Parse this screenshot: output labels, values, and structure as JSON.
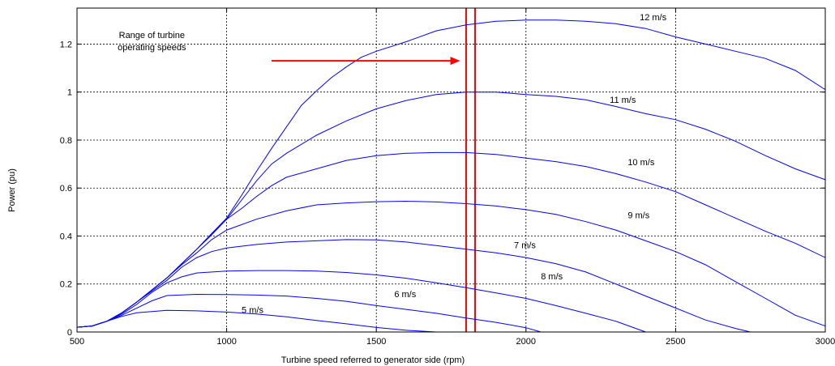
{
  "chart_data": {
    "type": "line",
    "title": "",
    "xlabel": "Turbine speed referred to generator side (rpm)",
    "ylabel": "Power (pu)",
    "xlim": [
      500,
      3000
    ],
    "ylim": [
      0,
      1.35
    ],
    "xticks": [
      500,
      1000,
      1500,
      2000,
      2500,
      3000
    ],
    "yticks": [
      0,
      0.2,
      0.4,
      0.6,
      0.8,
      1,
      1.2
    ],
    "xtick_labels": [
      "500",
      "1000",
      "1500",
      "2000",
      "2500",
      "3000"
    ],
    "ytick_labels": [
      "0",
      "0.2",
      "0.4",
      "0.6",
      "0.8",
      "1",
      "1.2"
    ],
    "grid": true,
    "line_color": "#0000ff",
    "marker_color": "#ff0000",
    "series": [
      {
        "name": "5 m/s",
        "label_at": [
          1050,
          0.08
        ],
        "points": [
          [
            500,
            0.02
          ],
          [
            550,
            0.025
          ],
          [
            600,
            0.045
          ],
          [
            650,
            0.065
          ],
          [
            700,
            0.08
          ],
          [
            800,
            0.09
          ],
          [
            900,
            0.088
          ],
          [
            1000,
            0.083
          ],
          [
            1100,
            0.075
          ],
          [
            1200,
            0.063
          ],
          [
            1300,
            0.048
          ],
          [
            1400,
            0.034
          ],
          [
            1500,
            0.019
          ],
          [
            1600,
            0.007
          ],
          [
            1700,
            0.0
          ]
        ]
      },
      {
        "name": "6 m/s",
        "label_at": [
          1560,
          0.145
        ],
        "points": [
          [
            500,
            0.02
          ],
          [
            550,
            0.025
          ],
          [
            600,
            0.045
          ],
          [
            650,
            0.07
          ],
          [
            700,
            0.1
          ],
          [
            750,
            0.13
          ],
          [
            800,
            0.152
          ],
          [
            900,
            0.157
          ],
          [
            1000,
            0.156
          ],
          [
            1100,
            0.154
          ],
          [
            1200,
            0.15
          ],
          [
            1300,
            0.14
          ],
          [
            1400,
            0.128
          ],
          [
            1500,
            0.11
          ],
          [
            1600,
            0.094
          ],
          [
            1700,
            0.078
          ],
          [
            1800,
            0.058
          ],
          [
            1900,
            0.04
          ],
          [
            2000,
            0.018
          ],
          [
            2050,
            0.0
          ]
        ]
      },
      {
        "name": "7 m/s",
        "label_at": [
          1960,
          0.35
        ],
        "points": [
          [
            500,
            0.02
          ],
          [
            550,
            0.025
          ],
          [
            600,
            0.045
          ],
          [
            650,
            0.075
          ],
          [
            700,
            0.115
          ],
          [
            750,
            0.165
          ],
          [
            800,
            0.205
          ],
          [
            850,
            0.23
          ],
          [
            900,
            0.246
          ],
          [
            1000,
            0.254
          ],
          [
            1100,
            0.256
          ],
          [
            1200,
            0.256
          ],
          [
            1300,
            0.254
          ],
          [
            1400,
            0.248
          ],
          [
            1500,
            0.238
          ],
          [
            1600,
            0.224
          ],
          [
            1700,
            0.205
          ],
          [
            1800,
            0.185
          ],
          [
            1900,
            0.163
          ],
          [
            2000,
            0.14
          ],
          [
            2100,
            0.11
          ],
          [
            2200,
            0.078
          ],
          [
            2300,
            0.045
          ],
          [
            2400,
            0.0
          ]
        ]
      },
      {
        "name": "8 m/s",
        "label_at": [
          2050,
          0.22
        ],
        "points": [
          [
            500,
            0.02
          ],
          [
            550,
            0.025
          ],
          [
            600,
            0.045
          ],
          [
            650,
            0.08
          ],
          [
            700,
            0.125
          ],
          [
            750,
            0.17
          ],
          [
            800,
            0.215
          ],
          [
            850,
            0.27
          ],
          [
            900,
            0.31
          ],
          [
            950,
            0.335
          ],
          [
            1000,
            0.35
          ],
          [
            1100,
            0.365
          ],
          [
            1200,
            0.375
          ],
          [
            1300,
            0.38
          ],
          [
            1400,
            0.385
          ],
          [
            1500,
            0.384
          ],
          [
            1600,
            0.375
          ],
          [
            1700,
            0.36
          ],
          [
            1800,
            0.345
          ],
          [
            1900,
            0.33
          ],
          [
            2000,
            0.31
          ],
          [
            2100,
            0.285
          ],
          [
            2200,
            0.25
          ],
          [
            2300,
            0.2
          ],
          [
            2400,
            0.15
          ],
          [
            2500,
            0.1
          ],
          [
            2600,
            0.05
          ],
          [
            2700,
            0.015
          ],
          [
            2750,
            0.0
          ]
        ]
      },
      {
        "name": "9 m/s",
        "label_at": [
          2340,
          0.475
        ],
        "points": [
          [
            500,
            0.02
          ],
          [
            550,
            0.025
          ],
          [
            600,
            0.045
          ],
          [
            650,
            0.08
          ],
          [
            700,
            0.125
          ],
          [
            750,
            0.175
          ],
          [
            800,
            0.225
          ],
          [
            850,
            0.28
          ],
          [
            900,
            0.33
          ],
          [
            950,
            0.385
          ],
          [
            1000,
            0.425
          ],
          [
            1100,
            0.47
          ],
          [
            1200,
            0.505
          ],
          [
            1300,
            0.53
          ],
          [
            1400,
            0.538
          ],
          [
            1500,
            0.543
          ],
          [
            1600,
            0.545
          ],
          [
            1700,
            0.542
          ],
          [
            1800,
            0.535
          ],
          [
            1900,
            0.525
          ],
          [
            2000,
            0.51
          ],
          [
            2100,
            0.49
          ],
          [
            2200,
            0.46
          ],
          [
            2300,
            0.425
          ],
          [
            2400,
            0.38
          ],
          [
            2500,
            0.335
          ],
          [
            2600,
            0.28
          ],
          [
            2700,
            0.21
          ],
          [
            2800,
            0.14
          ],
          [
            2900,
            0.07
          ],
          [
            3000,
            0.025
          ]
        ]
      },
      {
        "name": "10 m/s",
        "label_at": [
          2340,
          0.695
        ],
        "points": [
          [
            500,
            0.02
          ],
          [
            550,
            0.025
          ],
          [
            600,
            0.045
          ],
          [
            650,
            0.08
          ],
          [
            700,
            0.125
          ],
          [
            750,
            0.175
          ],
          [
            800,
            0.225
          ],
          [
            850,
            0.285
          ],
          [
            900,
            0.345
          ],
          [
            950,
            0.405
          ],
          [
            1000,
            0.47
          ],
          [
            1050,
            0.515
          ],
          [
            1100,
            0.565
          ],
          [
            1150,
            0.61
          ],
          [
            1200,
            0.645
          ],
          [
            1300,
            0.68
          ],
          [
            1400,
            0.715
          ],
          [
            1500,
            0.735
          ],
          [
            1600,
            0.745
          ],
          [
            1700,
            0.748
          ],
          [
            1800,
            0.748
          ],
          [
            1900,
            0.74
          ],
          [
            2000,
            0.725
          ],
          [
            2100,
            0.71
          ],
          [
            2200,
            0.69
          ],
          [
            2300,
            0.66
          ],
          [
            2400,
            0.625
          ],
          [
            2500,
            0.585
          ],
          [
            2600,
            0.53
          ],
          [
            2700,
            0.475
          ],
          [
            2800,
            0.42
          ],
          [
            2900,
            0.37
          ],
          [
            3000,
            0.31
          ]
        ]
      },
      {
        "name": "11 m/s",
        "label_at": [
          2280,
          0.955
        ],
        "points": [
          [
            500,
            0.02
          ],
          [
            550,
            0.025
          ],
          [
            600,
            0.045
          ],
          [
            650,
            0.08
          ],
          [
            700,
            0.125
          ],
          [
            750,
            0.175
          ],
          [
            800,
            0.225
          ],
          [
            850,
            0.285
          ],
          [
            900,
            0.345
          ],
          [
            950,
            0.41
          ],
          [
            1000,
            0.47
          ],
          [
            1050,
            0.55
          ],
          [
            1100,
            0.63
          ],
          [
            1150,
            0.7
          ],
          [
            1200,
            0.745
          ],
          [
            1300,
            0.82
          ],
          [
            1400,
            0.88
          ],
          [
            1500,
            0.93
          ],
          [
            1600,
            0.965
          ],
          [
            1700,
            0.99
          ],
          [
            1800,
            1.0
          ],
          [
            1900,
            1.0
          ],
          [
            2000,
            0.99
          ],
          [
            2100,
            0.982
          ],
          [
            2200,
            0.968
          ],
          [
            2300,
            0.94
          ],
          [
            2400,
            0.91
          ],
          [
            2500,
            0.885
          ],
          [
            2600,
            0.845
          ],
          [
            2700,
            0.795
          ],
          [
            2800,
            0.735
          ],
          [
            2900,
            0.68
          ],
          [
            3000,
            0.635
          ]
        ]
      },
      {
        "name": "12 m/s",
        "label_at": [
          2380,
          1.3
        ],
        "points": [
          [
            500,
            0.02
          ],
          [
            550,
            0.025
          ],
          [
            600,
            0.045
          ],
          [
            650,
            0.08
          ],
          [
            700,
            0.125
          ],
          [
            750,
            0.175
          ],
          [
            800,
            0.225
          ],
          [
            850,
            0.285
          ],
          [
            900,
            0.345
          ],
          [
            950,
            0.41
          ],
          [
            1000,
            0.475
          ],
          [
            1050,
            0.57
          ],
          [
            1100,
            0.67
          ],
          [
            1150,
            0.765
          ],
          [
            1200,
            0.855
          ],
          [
            1250,
            0.945
          ],
          [
            1300,
            1.005
          ],
          [
            1350,
            1.06
          ],
          [
            1400,
            1.105
          ],
          [
            1450,
            1.145
          ],
          [
            1500,
            1.17
          ],
          [
            1600,
            1.21
          ],
          [
            1700,
            1.255
          ],
          [
            1800,
            1.28
          ],
          [
            1900,
            1.295
          ],
          [
            2000,
            1.3
          ],
          [
            2100,
            1.3
          ],
          [
            2200,
            1.295
          ],
          [
            2300,
            1.285
          ],
          [
            2400,
            1.265
          ],
          [
            2500,
            1.23
          ],
          [
            2600,
            1.2
          ],
          [
            2700,
            1.17
          ],
          [
            2800,
            1.14
          ],
          [
            2900,
            1.09
          ],
          [
            3000,
            1.01
          ]
        ]
      }
    ],
    "annotations": [
      {
        "lines": [
          "Range of turbine",
          "operating speeds"
        ],
        "at": [
          750,
          1.225
        ]
      }
    ],
    "operating_range": [
      1800,
      1830
    ],
    "arrow": {
      "from": [
        1150,
        1.13
      ],
      "to": [
        1780,
        1.13
      ]
    }
  }
}
